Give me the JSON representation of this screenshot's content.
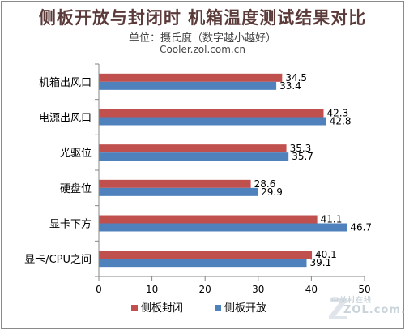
{
  "header": {
    "title": "侧板开放与封闭时 机箱温度测试结果对比",
    "subtitle": "单位：摄氏度（数字越小越好）",
    "source": "Cooler.zol.com.cn"
  },
  "watermark": {
    "cn": "中关村在线",
    "en": "ZOL.com.cn"
  },
  "colors": {
    "closed": "#c0504d",
    "open": "#4f81bd",
    "axis": "#868686"
  },
  "chart_data": {
    "type": "bar",
    "orientation": "horizontal",
    "categories": [
      "机箱出风口",
      "电源出风口",
      "光驱位",
      "硬盘位",
      "显卡下方",
      "显卡/CPU之间"
    ],
    "series": [
      {
        "name": "侧板封闭",
        "values": [
          34.5,
          42.3,
          35.3,
          28.6,
          41.1,
          40.1
        ]
      },
      {
        "name": "侧板开放",
        "values": [
          33.4,
          42.8,
          35.7,
          29.9,
          46.7,
          39.1
        ]
      }
    ],
    "xlim": [
      0,
      50
    ],
    "xticks": [
      "0",
      "10",
      "20",
      "30",
      "40",
      "50"
    ],
    "grid": false,
    "legend": "bottom"
  }
}
